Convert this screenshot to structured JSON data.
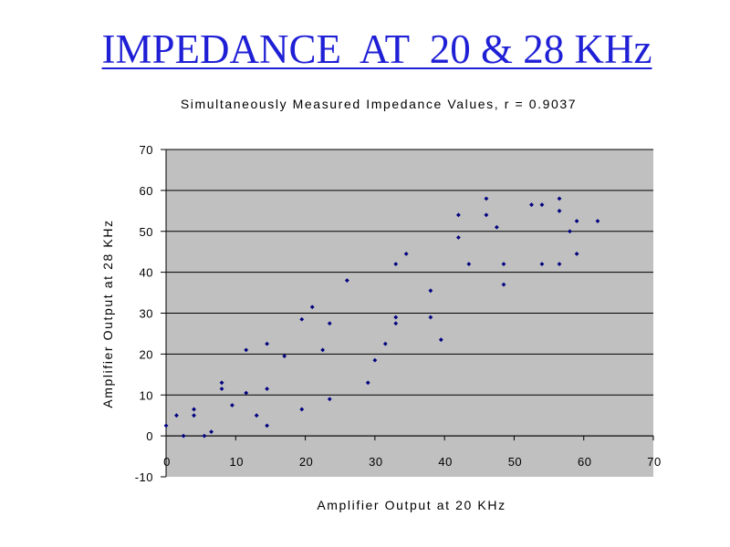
{
  "slide": {
    "title": "IMPEDANCE  AT  20 & 28 KHz"
  },
  "chart_data": {
    "type": "scatter",
    "title": "Simultaneously Measured Impedance Values, r = 0.9037",
    "xlabel": "Amplifier Output at 20 KHz",
    "ylabel": "Amplifier Output at 28 KHz",
    "xlim": [
      0,
      70
    ],
    "ylim": [
      -10,
      70
    ],
    "xticks": [
      "0",
      "10",
      "20",
      "30",
      "40",
      "50",
      "60",
      "70"
    ],
    "yticks": [
      "-10",
      "0",
      "10",
      "20",
      "30",
      "40",
      "50",
      "60",
      "70"
    ],
    "grid": "horizontal",
    "plot_background": "#c0c0c0",
    "marker_color": "#000080",
    "points": [
      [
        0,
        2.5
      ],
      [
        1.5,
        5
      ],
      [
        2.5,
        0
      ],
      [
        4,
        6.5
      ],
      [
        4,
        5
      ],
      [
        5.5,
        0
      ],
      [
        6.5,
        1
      ],
      [
        8,
        13
      ],
      [
        8,
        11.5
      ],
      [
        9.5,
        7.5
      ],
      [
        11.5,
        21
      ],
      [
        11.5,
        10.5
      ],
      [
        13,
        5
      ],
      [
        14.5,
        22.5
      ],
      [
        14.5,
        11.5
      ],
      [
        14.5,
        2.5
      ],
      [
        17,
        19.5
      ],
      [
        19.5,
        28.5
      ],
      [
        19.5,
        6.5
      ],
      [
        21,
        31.5
      ],
      [
        22.5,
        21
      ],
      [
        23.5,
        27.5
      ],
      [
        23.5,
        9
      ],
      [
        26,
        38
      ],
      [
        29,
        13
      ],
      [
        30,
        18.5
      ],
      [
        31.5,
        22.5
      ],
      [
        33,
        42
      ],
      [
        33,
        29
      ],
      [
        33,
        27.5
      ],
      [
        34.5,
        44.5
      ],
      [
        38,
        35.5
      ],
      [
        38,
        29
      ],
      [
        39.5,
        23.5
      ],
      [
        42,
        54
      ],
      [
        42,
        48.5
      ],
      [
        43.5,
        42
      ],
      [
        46,
        58
      ],
      [
        46,
        54
      ],
      [
        47.5,
        51
      ],
      [
        48.5,
        42
      ],
      [
        48.5,
        37
      ],
      [
        52.5,
        56.5
      ],
      [
        54,
        56.5
      ],
      [
        54,
        42
      ],
      [
        56.5,
        58
      ],
      [
        56.5,
        55
      ],
      [
        56.5,
        42
      ],
      [
        58,
        50
      ],
      [
        59,
        52.5
      ],
      [
        59,
        44.5
      ],
      [
        62,
        52.5
      ]
    ]
  }
}
